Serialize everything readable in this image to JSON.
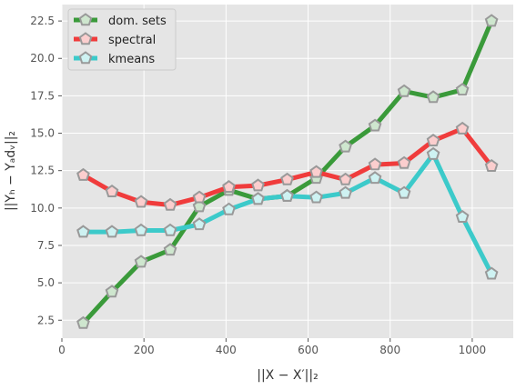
{
  "chart_data": {
    "type": "line",
    "title": "",
    "xlabel": "||X − X′||₂",
    "ylabel": "||Yₕ − Yₐdᵥ||₂",
    "xlim": [
      0,
      1100
    ],
    "ylim": [
      1.3,
      23.6
    ],
    "x_ticks": [
      0,
      200,
      400,
      600,
      800,
      1000
    ],
    "y_ticks": [
      2.5,
      5.0,
      7.5,
      10.0,
      12.5,
      15.0,
      17.5,
      20.0,
      22.5
    ],
    "x_tick_labels": [
      "0",
      "200",
      "400",
      "600",
      "800",
      "1000"
    ],
    "y_tick_labels": [
      "2.5",
      "5.0",
      "7.5",
      "10.0",
      "12.5",
      "15.0",
      "17.5",
      "20.0",
      "22.5"
    ],
    "grid": true,
    "legend_position": "top-left",
    "x": [
      52,
      122,
      193,
      264,
      335,
      407,
      478,
      549,
      620,
      691,
      763,
      834,
      905,
      976,
      1047
    ],
    "series": [
      {
        "name": "dom. sets",
        "color": "#3a9a3a",
        "values": [
          2.3,
          4.4,
          6.4,
          7.2,
          10.1,
          11.2,
          10.6,
          10.8,
          12.0,
          14.1,
          15.5,
          17.8,
          17.4,
          17.9,
          22.5
        ]
      },
      {
        "name": "spectral",
        "color": "#f03c3c",
        "values": [
          12.2,
          11.1,
          10.4,
          10.2,
          10.7,
          11.4,
          11.5,
          11.9,
          12.4,
          11.9,
          12.9,
          13.0,
          14.5,
          15.3,
          12.8
        ]
      },
      {
        "name": "kmeans",
        "color": "#3ccaca",
        "values": [
          8.4,
          8.4,
          8.5,
          8.5,
          8.9,
          9.9,
          10.6,
          10.8,
          10.7,
          11.0,
          12.0,
          11.0,
          13.6,
          9.4,
          5.6
        ]
      }
    ],
    "marker": "pentagon",
    "marker_edge_color": "#999999",
    "background_color": "#e5e5e5",
    "grid_color": "#ffffff"
  }
}
